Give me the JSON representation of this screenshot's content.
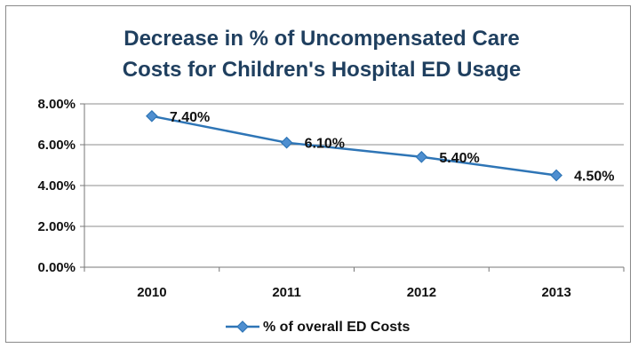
{
  "chart_data": {
    "type": "line",
    "title_lines": [
      "Decrease in % of Uncompensated Care",
      "Costs for Children's Hospital ED Usage"
    ],
    "categories": [
      "2010",
      "2011",
      "2012",
      "2013"
    ],
    "series": [
      {
        "name": "% of overall ED Costs",
        "values": [
          7.4,
          6.1,
          5.4,
          4.5
        ],
        "labels": [
          "7.40%",
          "6.10%",
          "5.40%",
          "4.50%"
        ],
        "color": "#2e75b6"
      }
    ],
    "yticks": [
      "0.00%",
      "2.00%",
      "4.00%",
      "6.00%",
      "8.00%"
    ],
    "ylim": [
      0,
      8
    ],
    "grid": true,
    "legend_position": "bottom"
  }
}
